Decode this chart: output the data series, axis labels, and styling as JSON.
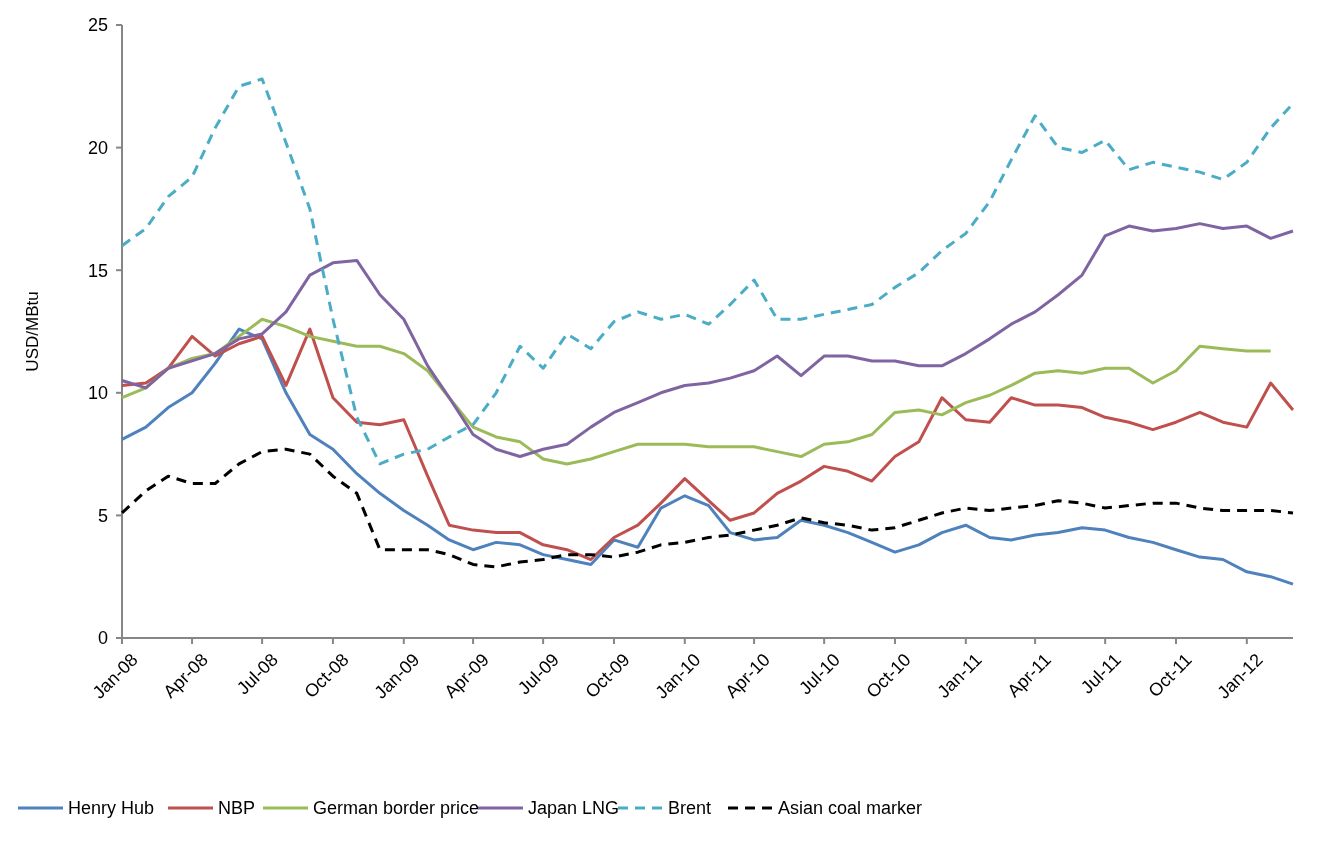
{
  "chart_data": {
    "type": "line",
    "ylabel": "USD/MBtu",
    "ylim": [
      0,
      25
    ],
    "yticks": [
      0,
      5,
      10,
      15,
      20,
      25
    ],
    "xlim": [
      "2008-01",
      "2012-03"
    ],
    "xticks": [
      {
        "value": "2008-01",
        "label": "Jan-08"
      },
      {
        "value": "2008-04",
        "label": "Apr-08"
      },
      {
        "value": "2008-07",
        "label": "Jul-08"
      },
      {
        "value": "2008-10",
        "label": "Oct-08"
      },
      {
        "value": "2009-01",
        "label": "Jan-09"
      },
      {
        "value": "2009-04",
        "label": "Apr-09"
      },
      {
        "value": "2009-07",
        "label": "Jul-09"
      },
      {
        "value": "2009-10",
        "label": "Oct-09"
      },
      {
        "value": "2010-01",
        "label": "Jan-10"
      },
      {
        "value": "2010-04",
        "label": "Apr-10"
      },
      {
        "value": "2010-07",
        "label": "Jul-10"
      },
      {
        "value": "2010-10",
        "label": "Oct-10"
      },
      {
        "value": "2011-01",
        "label": "Jan-11"
      },
      {
        "value": "2011-04",
        "label": "Apr-11"
      },
      {
        "value": "2011-07",
        "label": "Jul-11"
      },
      {
        "value": "2011-10",
        "label": "Oct-11"
      },
      {
        "value": "2012-01",
        "label": "Jan-12"
      }
    ],
    "x": [
      "2008-01",
      "2008-02",
      "2008-03",
      "2008-04",
      "2008-05",
      "2008-06",
      "2008-07",
      "2008-08",
      "2008-09",
      "2008-10",
      "2008-11",
      "2008-12",
      "2009-01",
      "2009-02",
      "2009-03",
      "2009-04",
      "2009-05",
      "2009-06",
      "2009-07",
      "2009-08",
      "2009-09",
      "2009-10",
      "2009-11",
      "2009-12",
      "2010-01",
      "2010-02",
      "2010-03",
      "2010-04",
      "2010-05",
      "2010-06",
      "2010-07",
      "2010-08",
      "2010-09",
      "2010-10",
      "2010-11",
      "2010-12",
      "2011-01",
      "2011-02",
      "2011-03",
      "2011-04",
      "2011-05",
      "2011-06",
      "2011-07",
      "2011-08",
      "2011-09",
      "2011-10",
      "2011-11",
      "2011-12",
      "2012-01",
      "2012-02",
      "2012-03"
    ],
    "grid": false,
    "legend": "bottom",
    "line_style": "solid",
    "marker": "none",
    "series": [
      {
        "name": "Henry Hub",
        "color": "#4f81bd",
        "values": [
          8.1,
          8.6,
          9.4,
          10.0,
          11.2,
          12.6,
          12.2,
          10.0,
          8.3,
          7.7,
          6.7,
          5.9,
          5.2,
          4.6,
          4.0,
          3.6,
          3.9,
          3.8,
          3.4,
          3.2,
          3.0,
          4.0,
          3.7,
          5.3,
          5.8,
          5.4,
          4.3,
          4.0,
          4.1,
          4.8,
          4.6,
          4.3,
          3.9,
          3.5,
          3.8,
          4.3,
          4.6,
          4.1,
          4.0,
          4.2,
          4.3,
          4.5,
          4.4,
          4.1,
          3.9,
          3.6,
          3.3,
          3.2,
          2.7,
          2.5,
          2.2
        ]
      },
      {
        "name": "NBP",
        "color": "#c0504d",
        "values": [
          10.3,
          10.4,
          11.0,
          12.3,
          11.5,
          12.0,
          12.3,
          10.3,
          12.6,
          9.8,
          8.8,
          8.7,
          8.9,
          6.6,
          4.6,
          4.4,
          4.3,
          4.3,
          3.8,
          3.6,
          3.2,
          4.1,
          4.6,
          5.5,
          6.5,
          5.6,
          4.8,
          5.1,
          5.9,
          6.4,
          7.0,
          6.8,
          6.4,
          7.4,
          8.0,
          9.8,
          8.9,
          8.8,
          9.8,
          9.5,
          9.5,
          9.4,
          9.0,
          8.8,
          8.5,
          8.8,
          9.2,
          8.8,
          8.6,
          10.4,
          9.3
        ]
      },
      {
        "name": "German border price",
        "color": "#9bbb59",
        "values": [
          9.8,
          10.2,
          11.0,
          11.4,
          11.6,
          12.3,
          13.0,
          12.7,
          12.3,
          12.1,
          11.9,
          11.9,
          11.6,
          10.9,
          9.8,
          8.6,
          8.2,
          8.0,
          7.3,
          7.1,
          7.3,
          7.6,
          7.9,
          7.9,
          7.9,
          7.8,
          7.8,
          7.8,
          7.6,
          7.4,
          7.9,
          8.0,
          8.3,
          9.2,
          9.3,
          9.1,
          9.6,
          9.9,
          10.3,
          10.8,
          10.9,
          10.8,
          11.0,
          11.0,
          10.4,
          10.9,
          11.9,
          11.8,
          11.7,
          11.7,
          null
        ]
      },
      {
        "name": "Japan LNG",
        "color": "#8064a2",
        "values": [
          10.5,
          10.2,
          11.0,
          11.3,
          11.6,
          12.2,
          12.4,
          13.3,
          14.8,
          15.3,
          15.4,
          14.0,
          13.0,
          11.1,
          9.8,
          8.3,
          7.7,
          7.4,
          7.7,
          7.9,
          8.6,
          9.2,
          9.6,
          10.0,
          10.3,
          10.4,
          10.6,
          10.9,
          11.5,
          10.7,
          11.5,
          11.5,
          11.3,
          11.3,
          11.1,
          11.1,
          11.6,
          12.2,
          12.8,
          13.3,
          14.0,
          14.8,
          16.4,
          16.8,
          16.6,
          16.7,
          16.9,
          16.7,
          16.8,
          16.3,
          16.6
        ]
      },
      {
        "name": "Brent",
        "color": "#4bacc6",
        "line_style": "dashed",
        "values": [
          16.0,
          16.7,
          18.0,
          18.8,
          20.8,
          22.5,
          22.8,
          20.2,
          17.5,
          13.0,
          9.0,
          7.1,
          7.5,
          7.7,
          8.2,
          8.7,
          10.0,
          11.9,
          11.0,
          12.4,
          11.8,
          12.9,
          13.3,
          13.0,
          13.2,
          12.8,
          13.6,
          14.6,
          13.0,
          13.0,
          13.2,
          13.4,
          13.6,
          14.3,
          14.9,
          15.8,
          16.5,
          17.8,
          19.5,
          21.3,
          20.0,
          19.8,
          20.3,
          19.1,
          19.4,
          19.2,
          19.0,
          18.7,
          19.4,
          20.8,
          21.8
        ]
      },
      {
        "name": "Asian coal marker",
        "color": "#000000",
        "line_style": "dashed",
        "values": [
          5.1,
          6.0,
          6.6,
          6.3,
          6.3,
          7.1,
          7.6,
          7.7,
          7.5,
          6.6,
          5.9,
          3.6,
          3.6,
          3.6,
          3.4,
          3.0,
          2.9,
          3.1,
          3.2,
          3.4,
          3.4,
          3.3,
          3.5,
          3.8,
          3.9,
          4.1,
          4.2,
          4.4,
          4.6,
          4.9,
          4.7,
          4.6,
          4.4,
          4.5,
          4.8,
          5.1,
          5.3,
          5.2,
          5.3,
          5.4,
          5.6,
          5.5,
          5.3,
          5.4,
          5.5,
          5.5,
          5.3,
          5.2,
          5.2,
          5.2,
          5.1
        ]
      }
    ]
  }
}
